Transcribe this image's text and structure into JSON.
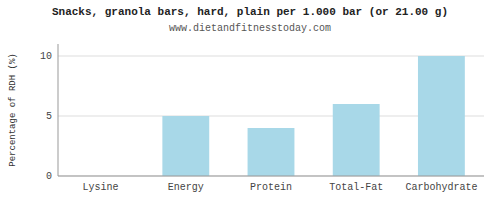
{
  "chart_data": {
    "type": "bar",
    "title": "Snacks, granola bars, hard, plain per 1.000 bar (or 21.00 g)",
    "subtitle": "www.dietandfitnesstoday.com",
    "ylabel": "Percentage of RDH (%)",
    "categories": [
      "Lysine",
      "Energy",
      "Protein",
      "Total-Fat",
      "Carbohydrate"
    ],
    "values": [
      0,
      5,
      4,
      6,
      10
    ],
    "color": "#a8d8e8",
    "ylim": [
      0,
      11
    ],
    "yticks": [
      0,
      5,
      10
    ],
    "grid": true
  }
}
